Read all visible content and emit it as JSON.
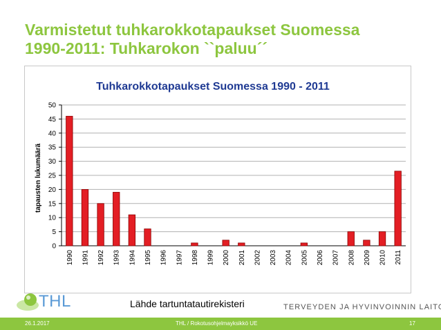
{
  "slide": {
    "title_line1": "Varmistetut tuhkarokkotapaukset Suomessa",
    "title_line2": "1990-2011: Tuhkarokon ``paluu´´",
    "source": "Lähde tartuntatautirekisteri",
    "logo_text": "THL",
    "org_name": "TERVEYDEN JA HYVINVOINNIN LAITOS",
    "footer_date": "26.1.2017",
    "footer_center": "THL / Rokotusohjelmayksikkö UE",
    "footer_page": "17"
  },
  "colors": {
    "title_green": "#8dc63f",
    "bar_red": "#e31e24",
    "bar_border": "#8b0000",
    "chart_title_blue": "#1f3a93",
    "logo_blue": "#5a9ad6"
  },
  "chart_data": {
    "type": "bar",
    "title": "Tuhkarokkotapaukset Suomessa 1990 - 2011",
    "xlabel": "",
    "ylabel": "tapausten lukumäärä",
    "ylim": [
      0,
      50
    ],
    "yticks": [
      0,
      5,
      10,
      15,
      20,
      25,
      30,
      35,
      40,
      45,
      50
    ],
    "grid": true,
    "legend": "none",
    "categories": [
      "1990",
      "1991",
      "1992",
      "1993",
      "1994",
      "1995",
      "1996",
      "1997",
      "1998",
      "1999",
      "2000",
      "2001",
      "2002",
      "2003",
      "2004",
      "2005",
      "2006",
      "2007",
      "2008",
      "2009",
      "2010",
      "2011"
    ],
    "values": [
      46,
      20,
      15,
      19,
      11,
      6,
      0,
      0,
      1,
      0,
      2,
      1,
      0,
      0,
      0,
      1,
      0,
      0,
      5,
      2,
      5,
      26.5
    ]
  }
}
